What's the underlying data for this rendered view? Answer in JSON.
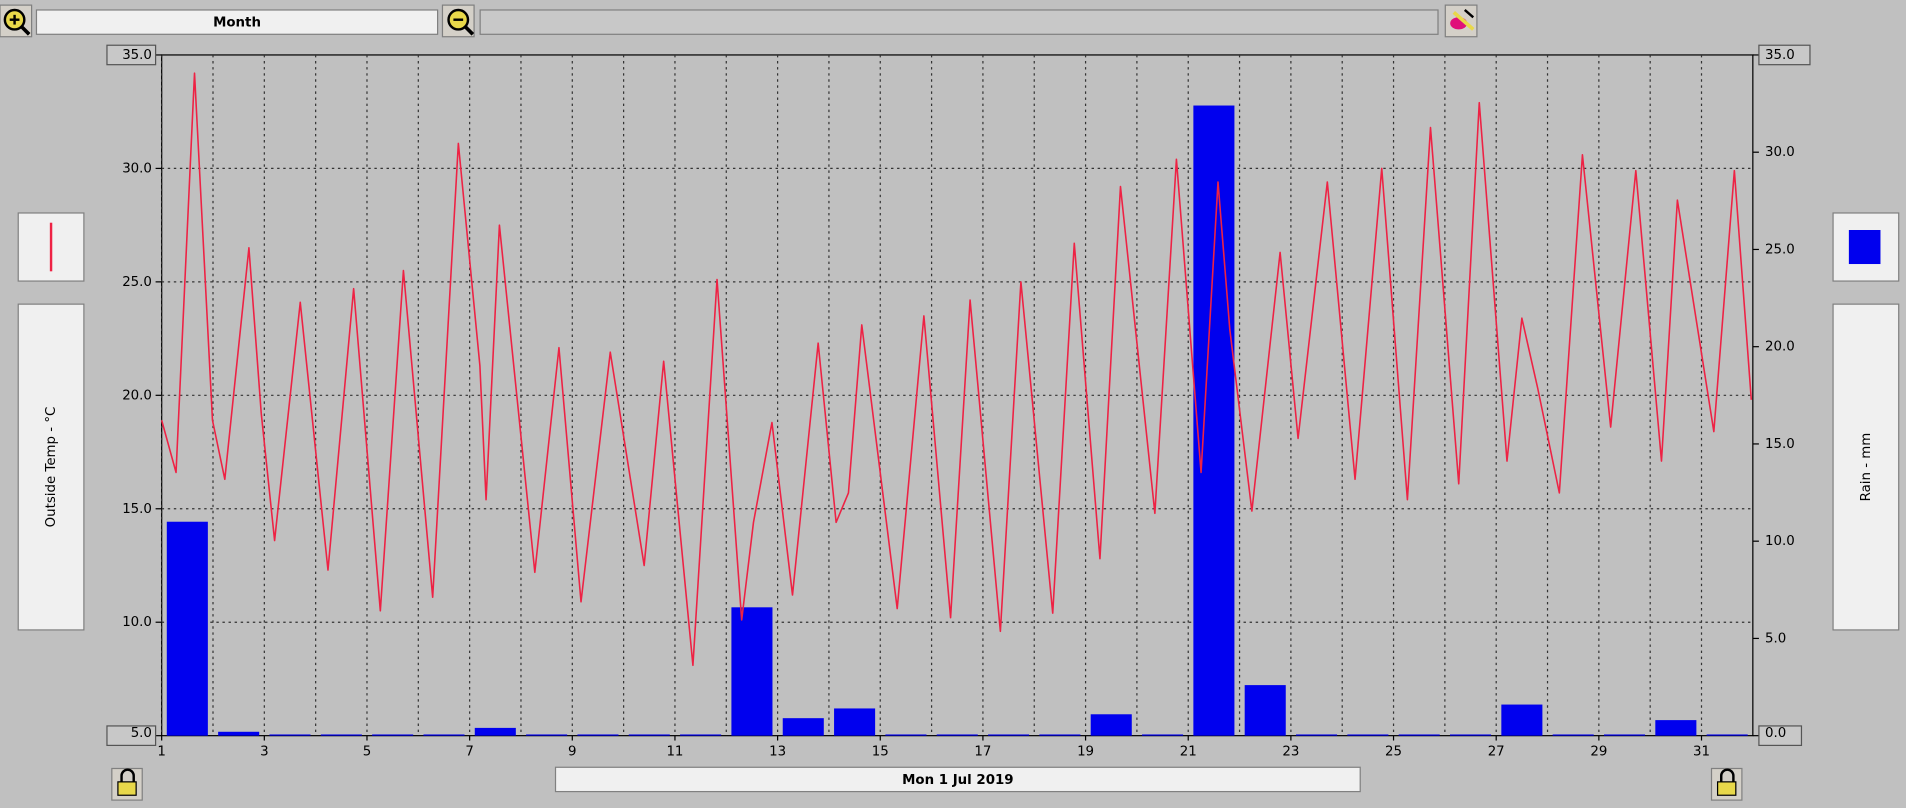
{
  "toolbar": {
    "period": "Month"
  },
  "chart_data": {
    "type": "combo",
    "date_label": "Mon 1 Jul 2019",
    "xlim": [
      1,
      32
    ],
    "xticks": [
      1,
      3,
      5,
      7,
      9,
      11,
      13,
      15,
      17,
      19,
      21,
      23,
      25,
      27,
      29,
      31
    ],
    "ylim": [
      5,
      35
    ],
    "yticks": [
      {
        "value": 5,
        "label": "5.0"
      },
      {
        "value": 10,
        "label": "10.0"
      },
      {
        "value": 15,
        "label": "15.0"
      },
      {
        "value": 20,
        "label": "20.0"
      },
      {
        "value": 25,
        "label": "25.0"
      },
      {
        "value": 30,
        "label": "30.0"
      },
      {
        "value": 35,
        "label": "35.0"
      }
    ],
    "y2lim": [
      0,
      35
    ],
    "y2ticks": [
      {
        "value": 0,
        "label": "0.0"
      },
      {
        "value": 5,
        "label": "5.0"
      },
      {
        "value": 10,
        "label": "10.0"
      },
      {
        "value": 15,
        "label": "15.0"
      },
      {
        "value": 20,
        "label": "20.0"
      },
      {
        "value": 25,
        "label": "25.0"
      },
      {
        "value": 30,
        "label": "30.0"
      },
      {
        "value": 35,
        "label": "35.0"
      }
    ],
    "grid": true,
    "series": [
      {
        "name": "Outside Temp - °C",
        "type": "line",
        "color": "#ee2244",
        "x": [
          1.0,
          1.28,
          1.64,
          1.99,
          2.23,
          2.7,
          2.94,
          3.2,
          3.7,
          4.24,
          4.74,
          5.26,
          5.71,
          6.28,
          6.78,
          7.2,
          7.32,
          7.58,
          8.27,
          8.74,
          9.17,
          9.74,
          10.4,
          10.78,
          11.35,
          11.82,
          12.3,
          12.53,
          12.89,
          13.29,
          13.79,
          14.14,
          14.38,
          14.64,
          15.33,
          15.85,
          16.37,
          16.75,
          17.34,
          17.74,
          18.36,
          18.78,
          19.28,
          19.68,
          20.35,
          20.77,
          21.25,
          21.58,
          21.81,
          22.24,
          22.79,
          23.14,
          23.71,
          24.25,
          24.77,
          25.27,
          25.72,
          26.27,
          26.67,
          27.21,
          27.5,
          27.81,
          28.23,
          28.68,
          29.23,
          29.72,
          30.22,
          30.53,
          31.24,
          31.64,
          31.97
        ],
        "values": [
          18.9,
          16.6,
          34.2,
          18.9,
          16.3,
          26.5,
          19.2,
          13.6,
          24.1,
          12.3,
          24.7,
          10.5,
          25.5,
          11.1,
          31.1,
          21.3,
          15.4,
          27.5,
          12.2,
          22.1,
          10.9,
          21.9,
          12.5,
          21.5,
          8.1,
          25.1,
          10.1,
          14.4,
          18.8,
          11.2,
          22.3,
          14.4,
          15.7,
          23.1,
          10.6,
          23.5,
          10.2,
          24.2,
          9.6,
          25.0,
          10.4,
          26.7,
          12.8,
          29.2,
          14.8,
          30.4,
          16.6,
          29.4,
          22.9,
          14.9,
          26.3,
          18.1,
          29.4,
          16.3,
          30.0,
          15.4,
          31.8,
          16.1,
          32.9,
          17.1,
          23.4,
          20.3,
          15.7,
          30.6,
          18.6,
          29.9,
          17.1,
          28.6,
          18.4,
          29.9,
          19.8
        ]
      },
      {
        "name": "Rain - mm",
        "type": "bar",
        "color": "#0000ee",
        "axis": "y2",
        "x": [
          1,
          2,
          3,
          4,
          5,
          6,
          7,
          8,
          9,
          10,
          11,
          12,
          13,
          14,
          15,
          16,
          17,
          18,
          19,
          20,
          21,
          22,
          23,
          24,
          25,
          26,
          27,
          28,
          29,
          30,
          31
        ],
        "values": [
          11.0,
          0.2,
          0,
          0,
          0,
          0,
          0.4,
          0,
          0,
          0,
          0,
          6.6,
          0.9,
          1.4,
          0,
          0,
          0,
          0,
          1.1,
          0,
          32.4,
          2.6,
          0,
          0,
          0,
          0,
          1.6,
          0,
          0,
          0.8,
          0
        ]
      }
    ]
  }
}
